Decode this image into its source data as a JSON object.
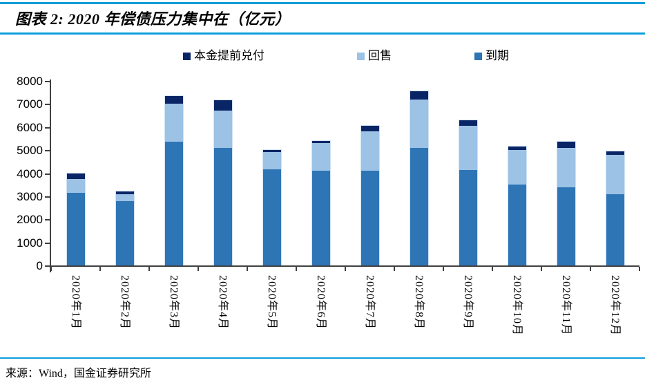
{
  "header": {
    "title": "图表 2: 2020 年偿债压力集中在（亿元）"
  },
  "footer": {
    "source": "来源：Wind，国金证券研究所"
  },
  "colors": {
    "rule_blue": "#0d9ddb",
    "axis": "#404040",
    "bar_border": "#cfe2f4",
    "navy": "#0a2565",
    "light_blue": "#9cc2e5",
    "medium_blue": "#2e75b6"
  },
  "chart_data": {
    "type": "bar",
    "stacked": true,
    "title": "2020 年偿债压力集中在（亿元）",
    "xlabel": "",
    "ylabel": "",
    "categories": [
      "2020年1月",
      "2020年2月",
      "2020年3月",
      "2020年4月",
      "2020年5月",
      "2020年6月",
      "2020年7月",
      "2020年8月",
      "2020年9月",
      "2020年10月",
      "2020年11月",
      "2020年12月"
    ],
    "series": [
      {
        "name": "本金提前兑付",
        "color": "#0a2565",
        "values": [
          250,
          100,
          350,
          450,
          100,
          100,
          250,
          350,
          250,
          150,
          250,
          150
        ]
      },
      {
        "name": "回售",
        "color": "#9cc2e5",
        "values": [
          600,
          300,
          1650,
          1600,
          750,
          1200,
          1700,
          2100,
          1900,
          1500,
          1700,
          1700
        ]
      },
      {
        "name": "到期",
        "color": "#2e75b6",
        "values": [
          3150,
          2800,
          5350,
          5100,
          4150,
          4100,
          4100,
          5100,
          4150,
          3500,
          3400,
          3100
        ]
      }
    ],
    "totals": [
      4000,
      3200,
      7350,
      7150,
      5000,
      5400,
      6050,
      7550,
      6300,
      5150,
      5350,
      4950
    ],
    "stack_order_bottom_to_top": [
      "到期",
      "回售",
      "本金提前兑付"
    ],
    "yticks": [
      0,
      1000,
      2000,
      3000,
      4000,
      5000,
      6000,
      7000,
      8000
    ],
    "ylim": [
      0,
      8000
    ],
    "grid": false,
    "legend_position": "top"
  }
}
